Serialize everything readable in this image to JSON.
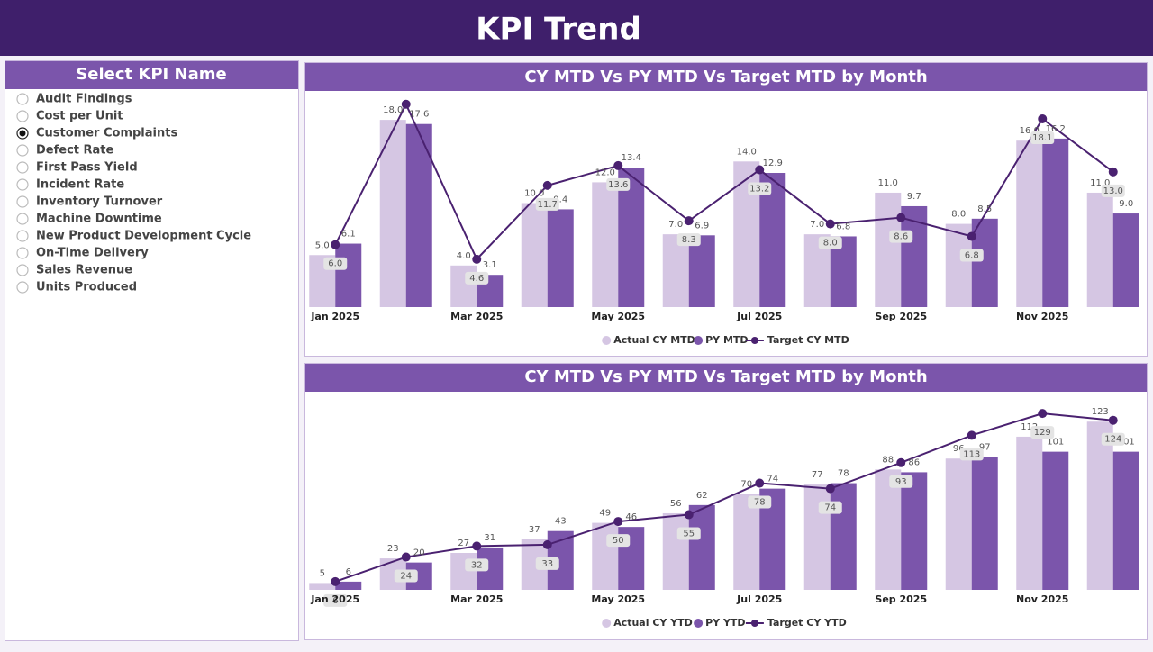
{
  "header": {
    "title": "KPI Trend"
  },
  "slicer": {
    "title": "Select KPI Name",
    "selected_index": 2,
    "options": [
      "Audit Findings",
      "Cost per Unit",
      "Customer Complaints",
      "Defect Rate",
      "First Pass Yield",
      "Incident Rate",
      "Inventory Turnover",
      "Machine Downtime",
      "New Product Development Cycle",
      "On-Time Delivery",
      "Sales Revenue",
      "Units Produced"
    ]
  },
  "chart_data": [
    {
      "type": "bar",
      "title": "CY MTD Vs PY MTD Vs Target MTD by Month",
      "categories": [
        "Jan 2025",
        null,
        "Mar 2025",
        null,
        "May 2025",
        null,
        "Jul 2025",
        null,
        "Sep 2025",
        null,
        "Nov 2025",
        null
      ],
      "ylim": [
        0,
        20
      ],
      "series": [
        {
          "name": "Actual CY MTD",
          "type": "bar",
          "color": "#d5c6e3",
          "values": [
            5,
            18,
            4,
            10,
            12,
            7,
            14,
            7,
            11,
            8,
            16,
            11
          ],
          "value_labels": [
            "5.0",
            "18.0",
            "4.0",
            "10.0",
            "12.0",
            "7.0",
            "14.0",
            "7.0",
            "11.0",
            "8.0",
            "16.0",
            "11.0"
          ]
        },
        {
          "name": "PY MTD",
          "type": "bar",
          "color": "#7b55ab",
          "values": [
            6.1,
            17.6,
            3.1,
            9.4,
            13.4,
            6.9,
            12.9,
            6.8,
            9.7,
            8.5,
            16.2,
            9
          ],
          "value_labels": [
            "6.1",
            "17.6",
            "3.1",
            "9.4",
            "13.4",
            "6.9",
            "12.9",
            "6.8",
            "9.7",
            "8.5",
            "16.2",
            "9.0"
          ]
        },
        {
          "name": "Target CY MTD",
          "type": "line",
          "color": "#4a2170",
          "values": [
            6,
            19.5,
            4.6,
            11.7,
            13.6,
            8.3,
            13.2,
            8,
            8.6,
            6.8,
            18.1,
            13
          ],
          "value_labels": [
            "6.0",
            null,
            "4.6",
            "11.7",
            "13.6",
            "8.3",
            "13.2",
            "8.0",
            "8.6",
            "6.8",
            "18.1",
            "13.0"
          ]
        }
      ]
    },
    {
      "type": "bar",
      "title": "CY MTD Vs PY MTD Vs Target MTD by Month",
      "categories": [
        "Jan 2025",
        null,
        "Mar 2025",
        null,
        "May 2025",
        null,
        "Jul 2025",
        null,
        "Sep 2025",
        null,
        "Nov 2025",
        null
      ],
      "ylim": [
        0,
        135
      ],
      "series": [
        {
          "name": "Actual CY YTD",
          "type": "bar",
          "color": "#d5c6e3",
          "values": [
            5,
            23,
            27,
            37,
            49,
            56,
            70,
            77,
            88,
            96,
            112,
            123
          ]
        },
        {
          "name": "PY YTD",
          "type": "bar",
          "color": "#7b55ab",
          "values": [
            6,
            20,
            31,
            43,
            46,
            62,
            74,
            78,
            86,
            97,
            101,
            101
          ]
        },
        {
          "name": "Target CY YTD",
          "type": "line",
          "color": "#4a2170",
          "values": [
            6,
            24,
            32,
            33,
            50,
            55,
            78,
            74,
            93,
            113,
            129,
            124
          ]
        }
      ]
    }
  ]
}
